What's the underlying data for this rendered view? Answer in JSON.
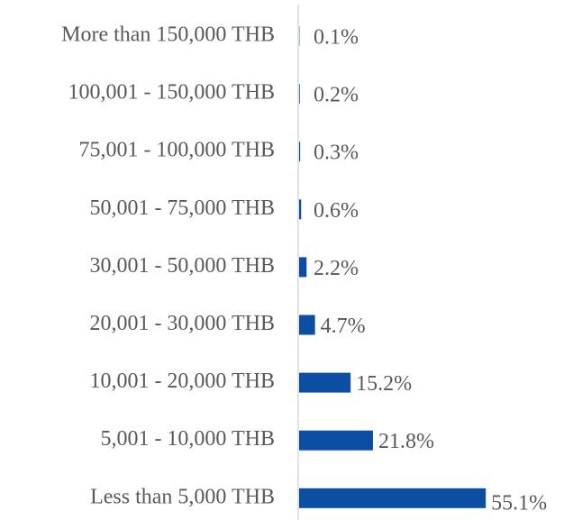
{
  "chart_data": {
    "type": "bar",
    "orientation": "horizontal",
    "categories": [
      "More than 150,000 THB",
      "100,001 - 150,000 THB",
      "75,001 - 100,000 THB",
      "50,001 - 75,000 THB",
      "30,001 - 50,000 THB",
      "20,001 - 30,000 THB",
      "10,001 - 20,000 THB",
      "5,001 - 10,000 THB",
      "Less than 5,000 THB"
    ],
    "values": [
      0.1,
      0.2,
      0.3,
      0.6,
      2.2,
      4.7,
      15.2,
      21.8,
      55.1
    ],
    "value_labels": [
      "0.1%",
      "0.2%",
      "0.3%",
      "0.6%",
      "2.2%",
      "4.7%",
      "15.2%",
      "21.8%",
      "55.1%"
    ],
    "color": "#0b4ea2"
  }
}
